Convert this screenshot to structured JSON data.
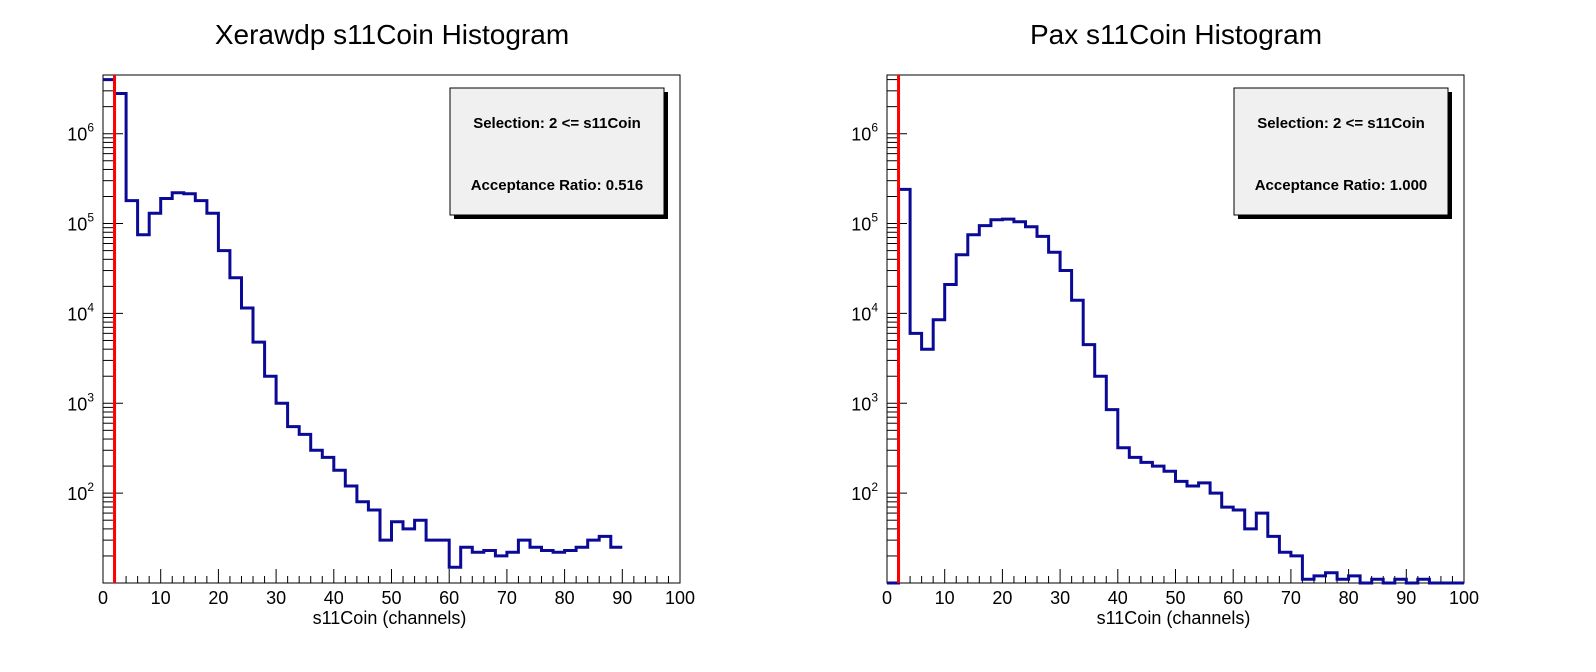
{
  "chart_data": [
    {
      "type": "histogram",
      "title": "Xerawdp s11Coin Histogram",
      "xlabel": "s11Coin (channels)",
      "ylabel": "",
      "xlim": [
        0,
        100
      ],
      "ylim": [
        10,
        4500000
      ],
      "yscale": "log",
      "bin_width": 2,
      "x_ticks": [
        "0",
        "10",
        "20",
        "30",
        "40",
        "50",
        "60",
        "70",
        "80",
        "90",
        "100"
      ],
      "y_ticks": [
        {
          "base": "10",
          "exp": "2",
          "value": 100
        },
        {
          "base": "10",
          "exp": "3",
          "value": 1000
        },
        {
          "base": "10",
          "exp": "4",
          "value": 10000
        },
        {
          "base": "10",
          "exp": "5",
          "value": 100000
        },
        {
          "base": "10",
          "exp": "6",
          "value": 1000000
        }
      ],
      "bin_edges_start": 0,
      "values": [
        4000000,
        2800000,
        180000,
        75000,
        130000,
        190000,
        220000,
        215000,
        180000,
        130000,
        50000,
        25000,
        11500,
        4800,
        2000,
        1000,
        550,
        450,
        300,
        250,
        180,
        120,
        80,
        65,
        30,
        48,
        40,
        50,
        30,
        30,
        15,
        25,
        22,
        23,
        20,
        22,
        30,
        25,
        23,
        22,
        23,
        25,
        30,
        33,
        25
      ],
      "cut_line_x": 2,
      "stats_box": {
        "line1": "Selection: 2 <= s11Coin",
        "line2": "Acceptance Ratio: 0.516"
      },
      "colors": {
        "histogram": "#0a0a96",
        "cut_line": "#ff0000",
        "stats_fill": "#f0f0f0"
      }
    },
    {
      "type": "histogram",
      "title": "Pax s11Coin Histogram",
      "xlabel": "s11Coin (channels)",
      "ylabel": "",
      "xlim": [
        0,
        100
      ],
      "ylim": [
        10,
        4500000
      ],
      "yscale": "log",
      "bin_width": 2,
      "x_ticks": [
        "0",
        "10",
        "20",
        "30",
        "40",
        "50",
        "60",
        "70",
        "80",
        "90",
        "100"
      ],
      "y_ticks": [
        {
          "base": "10",
          "exp": "2",
          "value": 100
        },
        {
          "base": "10",
          "exp": "3",
          "value": 1000
        },
        {
          "base": "10",
          "exp": "4",
          "value": 10000
        },
        {
          "base": "10",
          "exp": "5",
          "value": 100000
        },
        {
          "base": "10",
          "exp": "6",
          "value": 1000000
        }
      ],
      "bin_edges_start": 0,
      "values": [
        10,
        240000,
        6000,
        4000,
        8500,
        21000,
        45000,
        75000,
        95000,
        110000,
        112000,
        105000,
        92000,
        72000,
        48000,
        30000,
        14000,
        4500,
        2000,
        850,
        320,
        250,
        220,
        200,
        175,
        135,
        120,
        130,
        100,
        70,
        65,
        40,
        60,
        33,
        22,
        20,
        11,
        12,
        13,
        11,
        12,
        10,
        11,
        10,
        11,
        10,
        11,
        10,
        10,
        10
      ],
      "cut_line_x": 2,
      "stats_box": {
        "line1": "Selection: 2 <= s11Coin",
        "line2": "Acceptance Ratio: 1.000"
      },
      "colors": {
        "histogram": "#0a0a96",
        "cut_line": "#ff0000",
        "stats_fill": "#f0f0f0"
      }
    }
  ]
}
